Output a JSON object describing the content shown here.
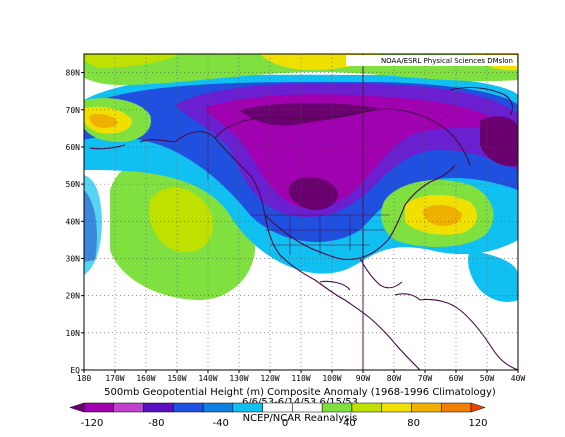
{
  "credit": "NOAA/ESRL Physical Sciences DMslon",
  "caption": {
    "line1": "500mb Geopotential Height (m) Composite Anomaly (1968-1996 Climatology)",
    "line2": "6/6/53-6/14/53,6/15/53",
    "line3": "NCEP/NCAR Reanalysis"
  },
  "axes": {
    "x_ticks": [
      "180",
      "170W",
      "160W",
      "150W",
      "140W",
      "130W",
      "120W",
      "110W",
      "100W",
      "90W",
      "80W",
      "70W",
      "60W",
      "50W",
      "40W"
    ],
    "y_ticks": [
      "EQ",
      "10N",
      "20N",
      "30N",
      "40N",
      "50N",
      "60N",
      "70N",
      "80N"
    ]
  },
  "colorbar": {
    "labels": [
      "-120",
      "-80",
      "-40",
      "0",
      "40",
      "80",
      "120"
    ],
    "colors": [
      "#6a0070",
      "#a000b0",
      "#c040d0",
      "#5a10c0",
      "#2050e0",
      "#1080e0",
      "#10c0f0",
      "#ffffff",
      "#ffffff",
      "#80e040",
      "#c0e000",
      "#f0e000",
      "#f0b000",
      "#f08000",
      "#f04000"
    ]
  },
  "map": {
    "field": "500mb geopotential height anomaly",
    "lon_range": [
      -180,
      -40
    ],
    "lat_range": [
      0,
      85
    ]
  }
}
